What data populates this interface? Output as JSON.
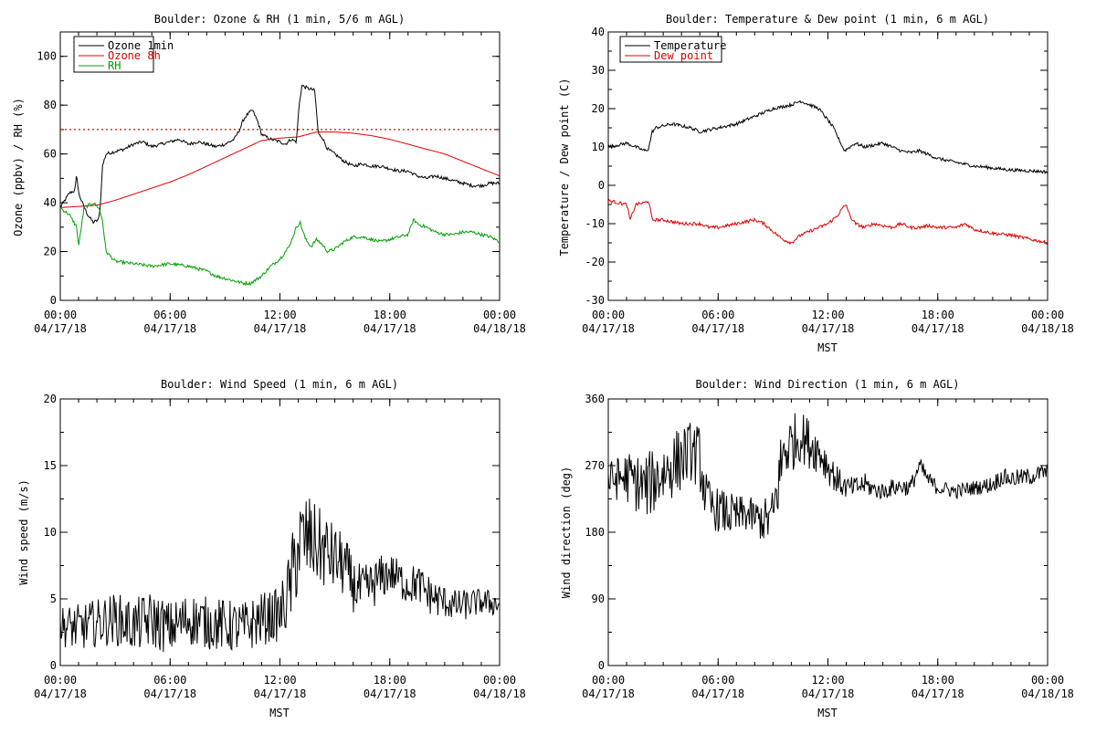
{
  "colors": {
    "black": "#000000",
    "red": "#e00000",
    "green": "#00a000",
    "dotted_ref": "#e00000"
  },
  "x_ticks": [
    {
      "h": 0,
      "time": "00:00",
      "date": "04/17/18"
    },
    {
      "h": 6,
      "time": "06:00",
      "date": "04/17/18"
    },
    {
      "h": 12,
      "time": "12:00",
      "date": "04/17/18"
    },
    {
      "h": 18,
      "time": "18:00",
      "date": "04/17/18"
    },
    {
      "h": 24,
      "time": "00:00",
      "date": "04/18/18"
    }
  ],
  "chart_data": [
    {
      "type": "line",
      "title": "Boulder: Ozone & RH (1 min, 5/6 m AGL)",
      "ylabel": "Ozone (ppbv) / RH (%)",
      "xlabel": "",
      "xlim": [
        0,
        24
      ],
      "ylim": [
        0,
        110
      ],
      "yticks": [
        0,
        20,
        40,
        60,
        80,
        100
      ],
      "legend": "top-left",
      "reference_line": {
        "y": 70,
        "style": "dotted",
        "color": "#e00000"
      },
      "series": [
        {
          "name": "Ozone 1min",
          "color": "#000000",
          "x": [
            0,
            0.5,
            0.8,
            0.9,
            1.0,
            1.2,
            1.5,
            1.8,
            2.1,
            2.2,
            2.3,
            2.5,
            3,
            3.5,
            4,
            4.5,
            5,
            5.5,
            6,
            6.5,
            7,
            7.5,
            8,
            8.5,
            9,
            9.5,
            9.8,
            10,
            10.2,
            10.5,
            10.8,
            11,
            11.5,
            12,
            12.3,
            12.6,
            12.9,
            13.05,
            13.2,
            13.5,
            13.9,
            14.1,
            14.3,
            14.6,
            15,
            15.5,
            16,
            16.5,
            17,
            17.5,
            18,
            18.5,
            19,
            19.5,
            20,
            20.5,
            21,
            21.5,
            22,
            22.5,
            23,
            23.5,
            24
          ],
          "y": [
            38,
            44,
            45,
            52,
            44,
            40,
            35,
            32,
            33,
            40,
            55,
            60,
            61,
            62,
            64,
            65,
            63,
            64,
            65,
            66,
            64,
            65,
            64,
            63,
            64,
            66,
            70,
            74,
            76,
            78,
            73,
            68,
            66,
            65,
            64,
            66,
            65,
            80,
            88,
            87,
            86,
            68,
            67,
            62,
            60,
            57,
            55,
            56,
            55,
            55,
            54,
            53,
            53,
            51,
            50,
            51,
            50,
            49,
            48,
            47,
            47,
            48,
            48
          ]
        },
        {
          "name": "Ozone 8h",
          "color": "#e00000",
          "x": [
            0,
            1,
            2,
            3,
            4,
            5,
            6,
            7,
            8,
            9,
            10,
            11,
            12,
            13,
            14,
            15,
            16,
            17,
            18,
            19,
            20,
            21,
            22,
            23,
            24
          ],
          "y": [
            38,
            38.5,
            39,
            41,
            43.5,
            46,
            48.5,
            51.5,
            55,
            58.5,
            62,
            65.5,
            66.5,
            67,
            69,
            69,
            68.5,
            67.5,
            66,
            64,
            62,
            60,
            57,
            54,
            51
          ]
        },
        {
          "name": "RH",
          "color": "#00a000",
          "x": [
            0,
            0.5,
            0.9,
            1.0,
            1.3,
            1.8,
            2.1,
            2.3,
            2.5,
            3,
            4,
            5,
            6,
            7,
            7.5,
            8,
            8.5,
            9,
            9.5,
            10,
            10.4,
            11,
            11.5,
            12,
            12.5,
            12.9,
            13.1,
            13.4,
            13.7,
            14,
            14.3,
            14.6,
            15,
            15.5,
            16,
            16.5,
            17,
            17.5,
            18,
            18.5,
            19,
            19.3,
            19.6,
            20,
            20.5,
            21,
            21.5,
            22,
            22.5,
            23,
            23.5,
            24
          ],
          "y": [
            38,
            35,
            30,
            22,
            38,
            40,
            38,
            33,
            20,
            16,
            15,
            14,
            15,
            14,
            13,
            12,
            10,
            9,
            8,
            7,
            7,
            10,
            14,
            17,
            22,
            30,
            32,
            25,
            22,
            25,
            23,
            20,
            21,
            24,
            26,
            26,
            25,
            24,
            25,
            26,
            27,
            33,
            31,
            30,
            28,
            27,
            27,
            28,
            28,
            27,
            26,
            24
          ]
        }
      ]
    },
    {
      "type": "line",
      "title": "Boulder: Temperature & Dew point (1 min, 6 m AGL)",
      "ylabel": "Temperature / Dew point (C)",
      "xlabel": "MST",
      "xlim": [
        0,
        24
      ],
      "ylim": [
        -30,
        40
      ],
      "yticks": [
        -30,
        -20,
        -10,
        0,
        10,
        20,
        30,
        40
      ],
      "legend": "top-left",
      "series": [
        {
          "name": "Temperature",
          "color": "#000000",
          "x": [
            0,
            0.5,
            1,
            1.5,
            2,
            2.2,
            2.4,
            2.6,
            3,
            3.5,
            4,
            4.5,
            5,
            5.5,
            6,
            6.5,
            7,
            7.5,
            8,
            8.5,
            9,
            9.5,
            10,
            10.5,
            11,
            11.5,
            12,
            12.3,
            12.6,
            12.9,
            13.2,
            13.5,
            14,
            14.5,
            15,
            15.5,
            16,
            16.5,
            17,
            17.5,
            18,
            18.5,
            19,
            19.5,
            20,
            20.5,
            21,
            22,
            23,
            24
          ],
          "y": [
            10,
            10.5,
            11,
            10,
            9,
            9.5,
            14,
            15,
            15.5,
            16,
            15.5,
            15,
            14,
            14.5,
            15,
            15.5,
            16,
            17,
            18,
            19,
            20,
            20.5,
            21,
            22,
            21,
            20,
            17,
            15,
            12,
            9,
            10,
            11,
            10,
            10.5,
            11,
            10,
            9,
            8.5,
            9,
            8,
            7,
            6.5,
            6,
            5.5,
            5,
            4.8,
            4.5,
            4,
            3.8,
            3.5
          ]
        },
        {
          "name": "Dew point",
          "color": "#e00000",
          "x": [
            0,
            0.5,
            1,
            1.2,
            1.5,
            2,
            2.2,
            2.4,
            2.6,
            3,
            3.5,
            4,
            4.5,
            5,
            5.5,
            6,
            6.5,
            7,
            7.5,
            8,
            8.5,
            9,
            9.5,
            10,
            10.5,
            11,
            11.5,
            12,
            12.5,
            12.8,
            13,
            13.2,
            13.5,
            14,
            14.5,
            15,
            15.5,
            16,
            16.5,
            17,
            17.5,
            18,
            18.5,
            19,
            19.5,
            20,
            20.5,
            21,
            22,
            23,
            24
          ],
          "y": [
            -4,
            -4.5,
            -5,
            -9,
            -5,
            -4.5,
            -4,
            -9,
            -9,
            -9,
            -9.5,
            -10,
            -10,
            -10,
            -11,
            -11,
            -10.5,
            -10,
            -9.5,
            -9,
            -10,
            -12,
            -14,
            -15,
            -13,
            -12,
            -11,
            -10,
            -8,
            -6,
            -5,
            -8,
            -10,
            -11,
            -10,
            -10.5,
            -11,
            -10,
            -11,
            -11,
            -10.5,
            -11,
            -11,
            -11,
            -10,
            -11.5,
            -12,
            -12.5,
            -13,
            -14,
            -15
          ]
        }
      ]
    },
    {
      "type": "line",
      "title": "Boulder: Wind Speed (1 min, 6 m AGL)",
      "ylabel": "Wind speed (m/s)",
      "xlabel": "MST",
      "xlim": [
        0,
        24
      ],
      "ylim": [
        0,
        20
      ],
      "yticks": [
        0,
        5,
        10,
        15,
        20
      ],
      "series": [
        {
          "name": "",
          "color": "#000000",
          "x": [
            0,
            1,
            2,
            3,
            4,
            5,
            6,
            7,
            8,
            9,
            10,
            11,
            12,
            12.5,
            13,
            13.5,
            14,
            14.5,
            15,
            15.5,
            16,
            16.5,
            17,
            17.5,
            18,
            18.5,
            19,
            19.5,
            20,
            20.5,
            21,
            21.5,
            22,
            23,
            24
          ],
          "y": [
            3,
            2.8,
            3.2,
            3.5,
            3,
            3.4,
            2.8,
            3.5,
            3.2,
            3,
            2.8,
            3.5,
            3.8,
            5.5,
            9,
            9.5,
            9,
            8.5,
            8,
            7.5,
            6,
            5.5,
            6,
            6.5,
            7,
            6.5,
            6,
            6.2,
            5.5,
            5,
            4.8,
            4.5,
            4.5,
            4.8,
            4.6
          ],
          "spread": [
            1.5,
            1.8,
            1.8,
            2,
            2,
            2.2,
            2,
            2,
            2,
            2,
            2,
            2,
            2,
            3,
            3.8,
            3.5,
            3,
            3,
            2.5,
            2.5,
            2,
            2,
            1.8,
            1.8,
            1.5,
            1.5,
            1.5,
            1.5,
            1.5,
            1.5,
            1.2,
            1.2,
            1.2,
            1,
            1
          ]
        }
      ]
    },
    {
      "type": "line",
      "title": "Boulder: Wind Direction (1 min, 6 m AGL)",
      "ylabel": "Wind direction (deg)",
      "xlabel": "MST",
      "xlim": [
        0,
        24
      ],
      "ylim": [
        0,
        360
      ],
      "yticks": [
        0,
        90,
        180,
        270,
        360
      ],
      "series": [
        {
          "name": "",
          "color": "#000000",
          "x": [
            0,
            1,
            2,
            3,
            4,
            4.5,
            5,
            5.3,
            5.6,
            6,
            6.5,
            7,
            7.5,
            8,
            8.5,
            9,
            9.3,
            9.6,
            10,
            10.5,
            11,
            11.5,
            12,
            12.5,
            13,
            13.5,
            14,
            14.5,
            15,
            15.5,
            16,
            16.5,
            17,
            17.5,
            18,
            18.5,
            19,
            19.5,
            20,
            20.5,
            21,
            21.5,
            22,
            23,
            24
          ],
          "y": [
            250,
            255,
            240,
            260,
            280,
            290,
            280,
            230,
            215,
            210,
            205,
            200,
            205,
            200,
            195,
            200,
            250,
            290,
            300,
            310,
            300,
            290,
            270,
            250,
            240,
            240,
            245,
            238,
            235,
            240,
            242,
            240,
            270,
            250,
            240,
            238,
            235,
            238,
            240,
            242,
            245,
            255,
            252,
            255,
            262
          ],
          "spread": [
            25,
            35,
            45,
            45,
            45,
            40,
            45,
            35,
            30,
            30,
            30,
            30,
            25,
            25,
            30,
            40,
            50,
            50,
            40,
            35,
            35,
            30,
            25,
            20,
            15,
            15,
            15,
            12,
            12,
            12,
            12,
            12,
            12,
            12,
            10,
            10,
            10,
            10,
            10,
            10,
            12,
            12,
            12,
            12,
            12
          ]
        }
      ]
    }
  ]
}
